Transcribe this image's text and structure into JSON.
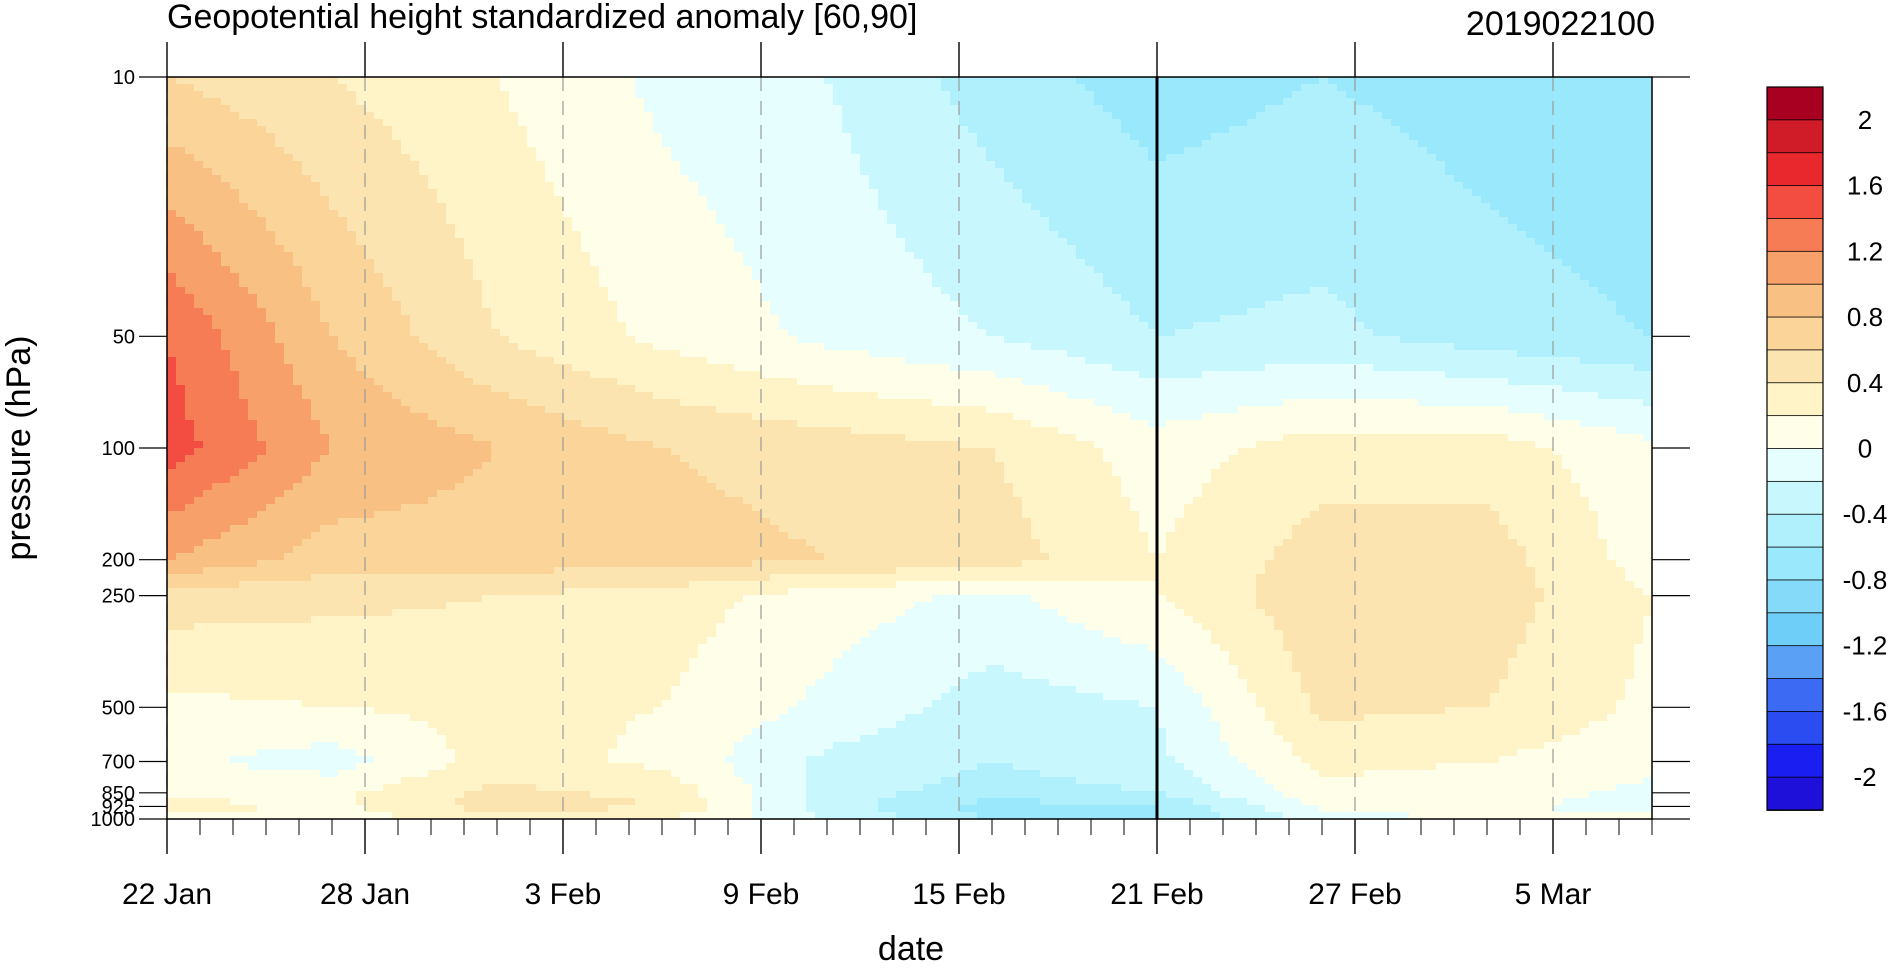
{
  "chart_data": {
    "type": "heatmap",
    "title": "Geopotential height standardized anomaly [60,90]",
    "right_title": "2019022100",
    "xlabel": "date",
    "ylabel": "pressure (hPa)",
    "x_ticks": [
      "22 Jan",
      "28 Jan",
      "3 Feb",
      "9 Feb",
      "15 Feb",
      "21 Feb",
      "27 Feb",
      "5 Mar"
    ],
    "x_dates": [
      "2019-01-22",
      "2019-01-28",
      "2019-02-03",
      "2019-02-09",
      "2019-02-15",
      "2019-02-21",
      "2019-02-27",
      "2019-03-05"
    ],
    "x_range": [
      "2019-01-22",
      "2019-03-08"
    ],
    "y_scale": "log",
    "y_reversed": true,
    "y_range": [
      1000,
      10
    ],
    "y_ticks": [
      "10",
      "50",
      "100",
      "200",
      "250",
      "500",
      "700",
      "850",
      "925",
      "1000"
    ],
    "y_values": [
      10,
      50,
      100,
      200,
      250,
      500,
      700,
      850,
      925,
      1000
    ],
    "current_date_marker": "2019-02-21",
    "colorbar": {
      "labels": [
        "2",
        "1.6",
        "1.2",
        "0.8",
        "0.4",
        "0",
        "-0.4",
        "-0.8",
        "-1.2",
        "-1.6",
        "-2"
      ],
      "label_values": [
        2,
        1.6,
        1.2,
        0.8,
        0.4,
        0,
        -0.4,
        -0.8,
        -1.2,
        -1.6,
        -2
      ],
      "levels": [
        -2.2,
        -2,
        -1.8,
        -1.6,
        -1.4,
        -1.2,
        -1,
        -0.8,
        -0.6,
        -0.4,
        -0.2,
        0,
        0.2,
        0.4,
        0.6,
        0.8,
        1,
        1.2,
        1.4,
        1.6,
        1.8,
        2,
        2.2
      ],
      "colors": [
        "#1e10d8",
        "#1a1ef0",
        "#2a4cf0",
        "#3c6af3",
        "#5aa0f5",
        "#6ecef8",
        "#86daf9",
        "#99e8fb",
        "#b0f0fc",
        "#c8f8fd",
        "#e6fefe",
        "#fffee8",
        "#fff4c8",
        "#fce4b0",
        "#fbd49a",
        "#f9c083",
        "#f8a06a",
        "#f67c55",
        "#f34d41",
        "#e8282d",
        "#d01c28",
        "#a80020"
      ]
    },
    "dates": [
      "2019-01-22",
      "2019-01-27",
      "2019-02-01",
      "2019-02-06",
      "2019-02-11",
      "2019-02-16",
      "2019-02-21",
      "2019-02-26",
      "2019-03-03",
      "2019-03-08"
    ],
    "values": [
      [
        0.6,
        0.4,
        0.2,
        -0.05,
        -0.2,
        -0.5,
        -0.7,
        -0.6,
        -0.7,
        -0.8
      ],
      [
        1.4,
        0.8,
        0.4,
        0.15,
        -0.05,
        -0.2,
        -0.4,
        -0.35,
        -0.5,
        -0.6
      ],
      [
        1.5,
        1.0,
        0.8,
        0.6,
        0.5,
        0.4,
        0.1,
        0.3,
        0.3,
        0.05
      ],
      [
        1.0,
        0.7,
        0.7,
        0.7,
        0.6,
        0.5,
        0.2,
        0.5,
        0.5,
        0.1
      ],
      [
        0.5,
        0.45,
        0.4,
        0.3,
        0.1,
        -0.05,
        0.2,
        0.55,
        0.5,
        0.2
      ],
      [
        0.15,
        0.2,
        0.25,
        0.2,
        -0.05,
        -0.3,
        -0.2,
        0.45,
        0.4,
        0.15
      ],
      [
        0.05,
        -0.1,
        0.3,
        0.15,
        -0.25,
        -0.4,
        -0.25,
        0.25,
        0.2,
        0.05
      ],
      [
        0.1,
        0.15,
        0.45,
        0.35,
        -0.3,
        -0.5,
        -0.4,
        0.15,
        0.1,
        -0.05
      ],
      [
        0.3,
        0.15,
        0.5,
        0.4,
        -0.3,
        -0.7,
        -0.6,
        0.05,
        0.05,
        -0.1
      ],
      [
        0.1,
        0.1,
        0.3,
        0.2,
        -0.2,
        -0.6,
        -0.6,
        -0.1,
        0.05,
        0.05
      ]
    ]
  }
}
